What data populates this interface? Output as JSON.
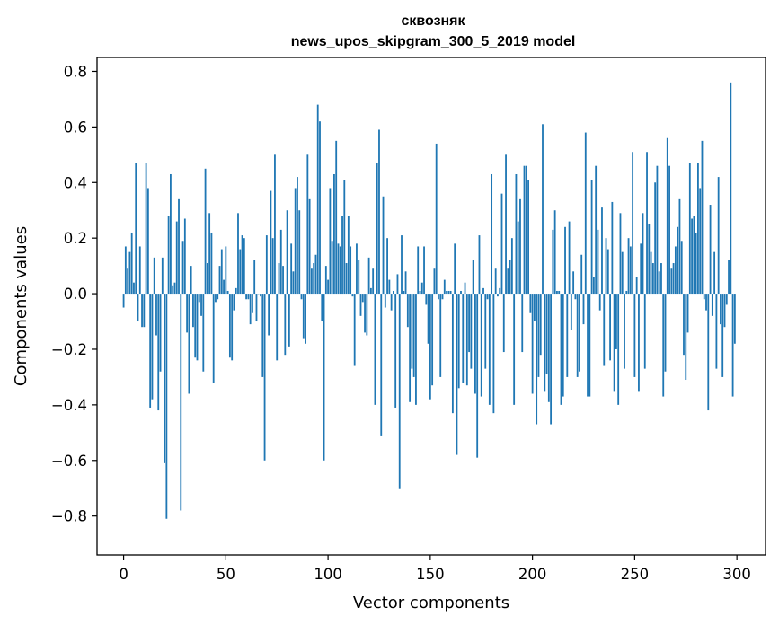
{
  "chart_data": {
    "type": "bar",
    "title": "сквозняк",
    "subtitle": "news_upos_skipgram_300_5_2019 model",
    "xlabel": "Vector components",
    "ylabel": "Components values",
    "xlim": [
      -13,
      314
    ],
    "ylim": [
      -0.94,
      0.85
    ],
    "xticks": [
      0,
      50,
      100,
      150,
      200,
      250,
      300
    ],
    "xtick_labels": [
      "0",
      "50",
      "100",
      "150",
      "200",
      "250",
      "300"
    ],
    "yticks": [
      -0.8,
      -0.6,
      -0.4,
      -0.2,
      0.0,
      0.2,
      0.4,
      0.6,
      0.8
    ],
    "ytick_labels": [
      "−0.8",
      "−0.6",
      "−0.4",
      "−0.2",
      "0.0",
      "0.2",
      "0.4",
      "0.6",
      "0.8"
    ],
    "bar_color": "#1f77b4",
    "grid": false,
    "values": [
      -0.05,
      0.17,
      0.09,
      0.15,
      0.22,
      0.04,
      0.47,
      -0.1,
      0.17,
      -0.12,
      -0.12,
      0.47,
      0.38,
      -0.41,
      -0.38,
      0.13,
      -0.15,
      -0.42,
      -0.28,
      0.13,
      -0.61,
      -0.81,
      0.28,
      0.43,
      0.03,
      0.04,
      0.26,
      0.34,
      -0.78,
      0.19,
      0.27,
      -0.14,
      -0.36,
      0.1,
      -0.12,
      -0.23,
      -0.24,
      -0.03,
      -0.08,
      -0.28,
      0.45,
      0.11,
      0.29,
      0.22,
      -0.32,
      -0.03,
      -0.02,
      0.1,
      0.16,
      0.05,
      0.17,
      0.01,
      -0.23,
      -0.24,
      -0.06,
      0.02,
      0.29,
      0.16,
      0.21,
      0.2,
      -0.02,
      -0.02,
      -0.11,
      -0.07,
      0.12,
      -0.1,
      0.0,
      -0.01,
      -0.3,
      -0.6,
      0.21,
      -0.15,
      0.37,
      0.2,
      0.5,
      -0.24,
      0.11,
      0.23,
      0.1,
      -0.22,
      0.3,
      -0.19,
      0.18,
      0.08,
      0.38,
      0.42,
      0.3,
      -0.02,
      -0.16,
      -0.18,
      0.5,
      0.34,
      0.09,
      0.11,
      0.14,
      0.68,
      0.62,
      -0.1,
      -0.6,
      0.1,
      0.05,
      0.38,
      0.19,
      0.43,
      0.55,
      0.18,
      0.17,
      0.28,
      0.41,
      0.11,
      0.28,
      0.17,
      -0.01,
      -0.26,
      0.18,
      0.12,
      -0.08,
      -0.03,
      -0.14,
      -0.15,
      0.13,
      0.02,
      0.09,
      -0.4,
      0.47,
      0.59,
      -0.51,
      0.35,
      -0.05,
      0.2,
      0.05,
      -0.06,
      0.01,
      -0.41,
      0.07,
      -0.7,
      0.21,
      0.01,
      0.08,
      -0.12,
      -0.39,
      -0.27,
      -0.3,
      -0.4,
      0.17,
      0.01,
      0.04,
      0.17,
      -0.04,
      -0.18,
      -0.38,
      -0.33,
      0.09,
      0.54,
      -0.02,
      -0.3,
      -0.02,
      0.05,
      0.01,
      0.01,
      0.01,
      -0.43,
      0.18,
      -0.58,
      -0.34,
      0.01,
      -0.32,
      0.04,
      -0.33,
      -0.21,
      -0.27,
      0.12,
      -0.36,
      -0.59,
      0.21,
      -0.37,
      0.02,
      -0.27,
      -0.02,
      -0.4,
      0.43,
      -0.43,
      0.09,
      -0.01,
      0.02,
      0.36,
      -0.21,
      0.5,
      0.09,
      0.12,
      0.2,
      -0.4,
      0.43,
      0.26,
      0.34,
      -0.21,
      0.46,
      0.46,
      0.41,
      -0.07,
      -0.36,
      -0.1,
      -0.47,
      -0.3,
      -0.22,
      0.61,
      -0.35,
      -0.29,
      -0.39,
      -0.47,
      0.23,
      0.3,
      0.01,
      0.01,
      -0.4,
      -0.37,
      0.24,
      -0.3,
      0.26,
      -0.13,
      0.08,
      -0.02,
      -0.3,
      -0.28,
      0.14,
      -0.11,
      0.58,
      -0.37,
      -0.37,
      0.41,
      0.06,
      0.46,
      0.23,
      -0.06,
      0.31,
      -0.26,
      0.2,
      0.16,
      -0.24,
      0.33,
      -0.35,
      -0.2,
      -0.4,
      0.29,
      0.15,
      -0.27,
      0.01,
      0.2,
      0.17,
      0.51,
      -0.3,
      0.06,
      -0.35,
      0.18,
      0.29,
      -0.27,
      0.51,
      0.25,
      0.15,
      0.11,
      0.4,
      0.46,
      0.08,
      0.11,
      -0.37,
      -0.28,
      0.56,
      0.46,
      0.09,
      0.11,
      0.17,
      0.24,
      0.34,
      0.19,
      -0.22,
      -0.31,
      -0.14,
      0.47,
      0.27,
      0.28,
      0.22,
      0.47,
      0.38,
      0.55,
      -0.02,
      -0.06,
      -0.42,
      0.32,
      -0.08,
      0.15,
      -0.27,
      0.42,
      -0.11,
      -0.3,
      -0.12,
      -0.04,
      0.12,
      0.76,
      -0.37,
      -0.18
    ]
  }
}
